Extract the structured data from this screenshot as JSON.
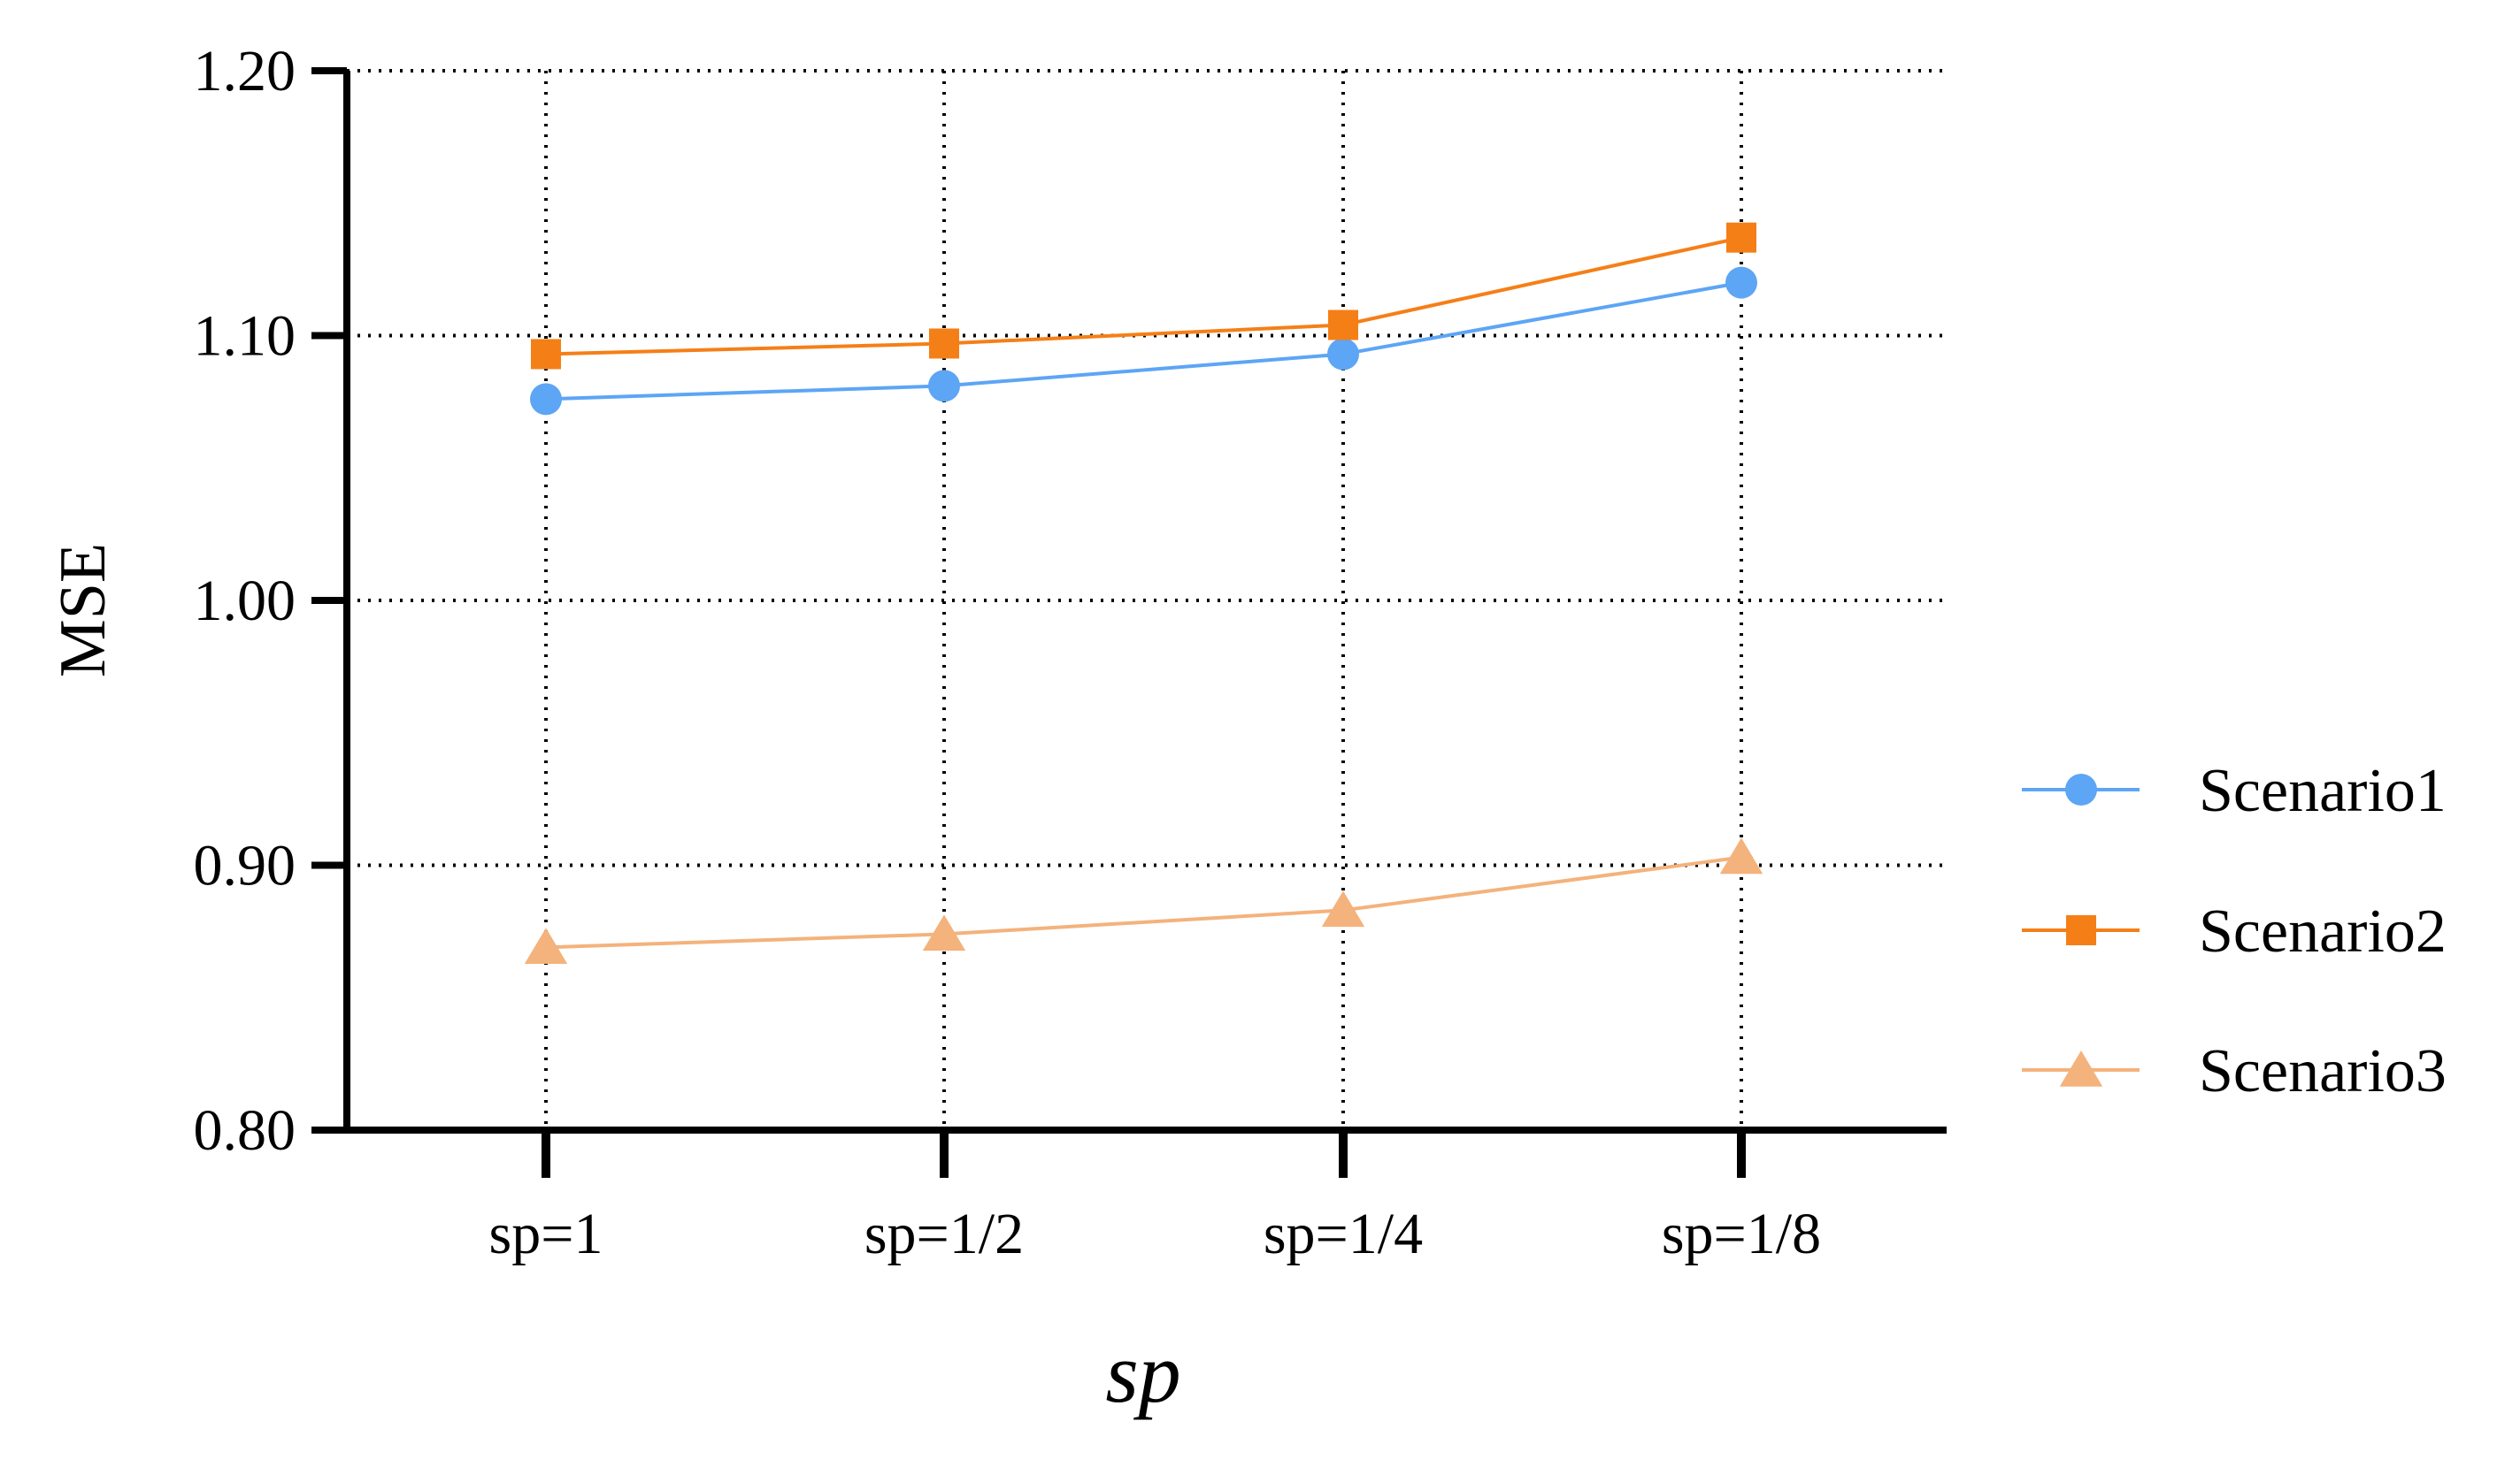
{
  "chart_data": {
    "type": "line",
    "title": "",
    "xlabel": "sp",
    "ylabel": "MSE",
    "categories": [
      "sp=1",
      "sp=1/2",
      "sp=1/4",
      "sp=1/8"
    ],
    "ylim": [
      0.8,
      1.2
    ],
    "yticks": [
      "0.80",
      "0.90",
      "1.00",
      "1.10",
      "1.20"
    ],
    "yticks_values": [
      0.8,
      0.9,
      1.0,
      1.1,
      1.2
    ],
    "grid": "dotted",
    "legend_position": "right",
    "series": [
      {
        "name": "Scenario1",
        "values": [
          1.076,
          1.081,
          1.093,
          1.12
        ],
        "color": "#5DA5F5",
        "marker": "circle"
      },
      {
        "name": "Scenario2",
        "values": [
          1.093,
          1.097,
          1.104,
          1.137
        ],
        "color": "#F57F17",
        "marker": "square"
      },
      {
        "name": "Scenario3",
        "values": [
          0.869,
          0.874,
          0.883,
          0.903
        ],
        "color": "#F4B27C",
        "marker": "triangle"
      }
    ]
  }
}
